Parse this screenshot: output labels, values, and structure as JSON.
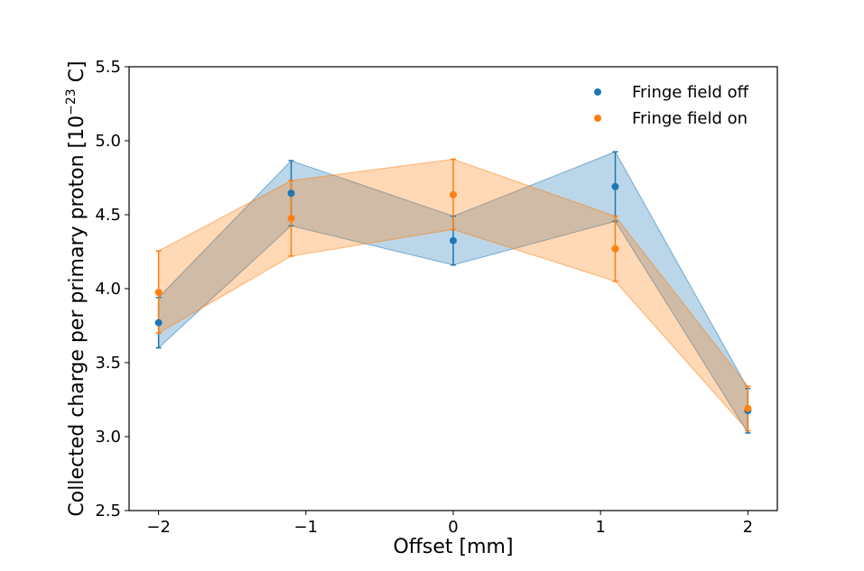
{
  "chart_data": {
    "type": "line",
    "title": "",
    "xlabel": "Offset [mm]",
    "ylabel": "Collected charge per primary proton [10",
    "ylabel_exponent": "−23",
    "ylabel_suffix": " C]",
    "xlim": [
      -2.2,
      2.2
    ],
    "ylim": [
      2.5,
      5.5
    ],
    "xticks": [
      -2,
      -1,
      0,
      1,
      2
    ],
    "xtick_labels": [
      "−2",
      "−1",
      "0",
      "1",
      "2"
    ],
    "yticks": [
      2.5,
      3.0,
      3.5,
      4.0,
      4.5,
      5.0,
      5.5
    ],
    "ytick_labels": [
      "2.5",
      "3.0",
      "3.5",
      "4.0",
      "4.5",
      "5.0",
      "5.5"
    ],
    "grid": false,
    "legend_position": "top-right",
    "series": [
      {
        "name": "Fringe field off",
        "color": "#1f77b4",
        "x": [
          -2,
          -1.1,
          0,
          1.1,
          2
        ],
        "y": [
          3.77,
          4.645,
          4.325,
          4.69,
          3.175
        ],
        "y_low": [
          3.6,
          4.425,
          4.16,
          4.455,
          3.025
        ],
        "y_high": [
          3.94,
          4.865,
          4.49,
          4.925,
          3.325
        ]
      },
      {
        "name": "Fringe field on",
        "color": "#ff7f0e",
        "x": [
          -2,
          -1.1,
          0,
          1.1,
          2
        ],
        "y": [
          3.975,
          4.475,
          4.635,
          4.27,
          3.19
        ],
        "y_low": [
          3.7,
          4.22,
          4.4,
          4.05,
          3.04
        ],
        "y_high": [
          4.255,
          4.73,
          4.875,
          4.49,
          3.34
        ]
      }
    ]
  }
}
